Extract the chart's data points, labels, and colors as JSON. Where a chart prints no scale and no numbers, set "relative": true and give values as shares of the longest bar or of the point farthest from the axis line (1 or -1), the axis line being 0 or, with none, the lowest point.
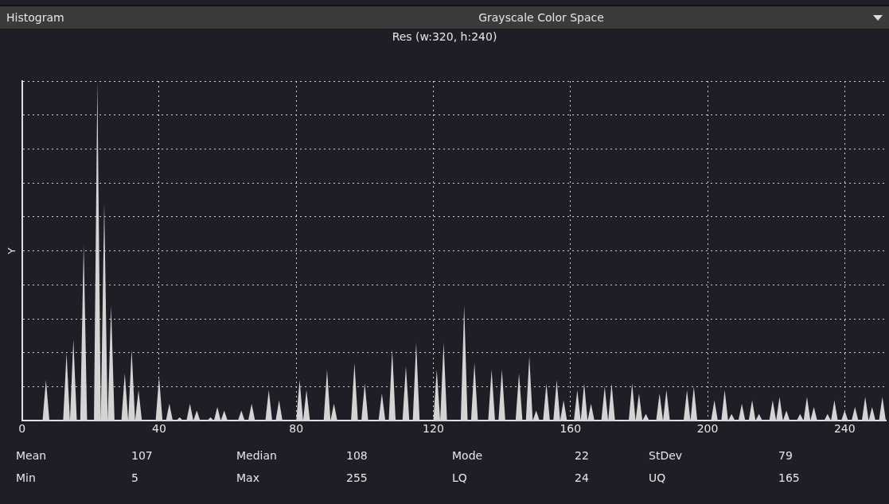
{
  "chart_data": {
    "type": "area",
    "title": "Histogram",
    "subtitle": "Res (w:320, h:240)",
    "ylabel": "Y",
    "relative": true,
    "color": "#d4d4d4",
    "marker": "none",
    "grid": true,
    "xlim": [
      0,
      252
    ],
    "xticks": [
      0,
      40,
      80,
      120,
      160,
      200,
      240
    ],
    "x": [
      0,
      6,
      7,
      8,
      12,
      13,
      14,
      15,
      16,
      17,
      18,
      19,
      21,
      22,
      23,
      24,
      25,
      26,
      27,
      29,
      30,
      31,
      32,
      33,
      34,
      35,
      39,
      40,
      41,
      42,
      43,
      44,
      45,
      46,
      47,
      48,
      49,
      50,
      51,
      52,
      54,
      55,
      56,
      57,
      58,
      59,
      60,
      63,
      64,
      65,
      66,
      67,
      68,
      71,
      72,
      73,
      74,
      75,
      76,
      80,
      81,
      82,
      83,
      84,
      88,
      89,
      90,
      91,
      92,
      96,
      97,
      98,
      99,
      100,
      101,
      104,
      105,
      106,
      107,
      108,
      109,
      111,
      112,
      113,
      114,
      115,
      116,
      120,
      121,
      122,
      123,
      124,
      128,
      129,
      130,
      131,
      132,
      133,
      136,
      137,
      138,
      139,
      140,
      141,
      144,
      145,
      146,
      147,
      148,
      149,
      150,
      151,
      152,
      153,
      154,
      155,
      156,
      157,
      158,
      159,
      161,
      162,
      163,
      164,
      165,
      166,
      167,
      169,
      170,
      171,
      172,
      173,
      177,
      178,
      179,
      180,
      181,
      182,
      183,
      185,
      186,
      187,
      188,
      189,
      193,
      194,
      195,
      196,
      197,
      201,
      202,
      203,
      204,
      205,
      206,
      207,
      208,
      209,
      210,
      211,
      212,
      213,
      214,
      215,
      216,
      218,
      219,
      220,
      221,
      222,
      223,
      224,
      226,
      227,
      228,
      229,
      230,
      231,
      232,
      234,
      235,
      236,
      237,
      238,
      239,
      240,
      241,
      242,
      243,
      244,
      245,
      246,
      247,
      248,
      249,
      250,
      251,
      252
    ],
    "values": [
      0,
      0,
      0.12,
      0,
      0,
      0.2,
      0,
      0.24,
      0,
      0,
      0.52,
      0,
      0,
      1,
      0,
      0.64,
      0,
      0.34,
      0,
      0,
      0.14,
      0,
      0.21,
      0,
      0.09,
      0,
      0,
      0.13,
      0,
      0,
      0.05,
      0,
      0,
      0.01,
      0,
      0,
      0.05,
      0,
      0.03,
      0,
      0,
      0.01,
      0,
      0.04,
      0,
      0.03,
      0,
      0,
      0.03,
      0,
      0,
      0.05,
      0,
      0,
      0.09,
      0,
      0,
      0.06,
      0,
      0,
      0.12,
      0,
      0.09,
      0,
      0,
      0.15,
      0,
      0.05,
      0,
      0,
      0.17,
      0,
      0,
      0.11,
      0,
      0,
      0.08,
      0,
      0,
      0.21,
      0,
      0,
      0.16,
      0,
      0,
      0.23,
      0,
      0,
      0.15,
      0,
      0.23,
      0,
      0,
      0.34,
      0,
      0,
      0.17,
      0,
      0,
      0.15,
      0,
      0,
      0.15,
      0,
      0,
      0.14,
      0,
      0,
      0.19,
      0,
      0.03,
      0,
      0,
      0.11,
      0,
      0,
      0.12,
      0,
      0.06,
      0,
      0,
      0.09,
      0,
      0.11,
      0,
      0.05,
      0,
      0,
      0.1,
      0,
      0.11,
      0,
      0,
      0.11,
      0,
      0.08,
      0,
      0.02,
      0,
      0,
      0.08,
      0,
      0.09,
      0,
      0,
      0.09,
      0,
      0.1,
      0,
      0,
      0.06,
      0,
      0,
      0.09,
      0,
      0.02,
      0,
      0,
      0.05,
      0,
      0,
      0.06,
      0,
      0.02,
      0,
      0,
      0.06,
      0,
      0.07,
      0,
      0.03,
      0,
      0,
      0.02,
      0,
      0.07,
      0,
      0.04,
      0,
      0,
      0.02,
      0,
      0.06,
      0,
      0,
      0.03,
      0,
      0,
      0.04,
      0,
      0,
      0.07,
      0,
      0.04,
      0,
      0,
      0.07,
      0
    ],
    "annotations": [
      "Grayscale Color Space",
      "Mean",
      "107",
      "Median",
      "108",
      "Mode",
      "22",
      "StDev",
      "79",
      "Min",
      "5",
      "Max",
      "255",
      "LQ",
      "24",
      "UQ",
      "165"
    ]
  }
}
